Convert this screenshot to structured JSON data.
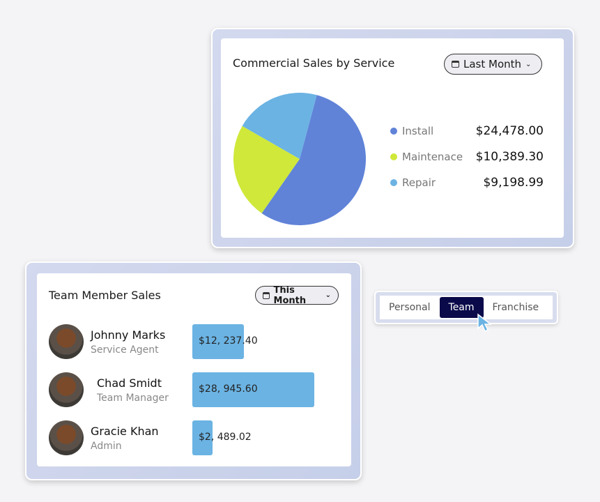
{
  "sales_card": {
    "title": "Commercial Sales by Service",
    "period": "Last Month"
  },
  "chart_data": {
    "type": "pie",
    "categories": [
      "Install",
      "Maintenace",
      "Repair"
    ],
    "values": [
      24478.0,
      10389.3,
      9198.99
    ],
    "labels": [
      "$24,478.00",
      "$10,389.30",
      "$9,198.99"
    ],
    "colors": [
      "#6083d8",
      "#cfe83a",
      "#6bb3e3"
    ]
  },
  "team_card": {
    "title": "Team Member Sales",
    "period": "This Month",
    "members": [
      {
        "name": "Johnny Marks",
        "role": "Service Agent",
        "amount": "$12, 237.40",
        "value": 12237.4
      },
      {
        "name": "Chad Smidt",
        "role": "Team Manager",
        "amount": "$28, 945.60",
        "value": 28945.6
      },
      {
        "name": "Gracie Khan",
        "role": "Admin",
        "amount": "$2, 489.02",
        "value": 2489.02
      }
    ]
  },
  "toggle": {
    "options": [
      "Personal",
      "Team",
      "Franchise"
    ],
    "selected": "Team"
  }
}
